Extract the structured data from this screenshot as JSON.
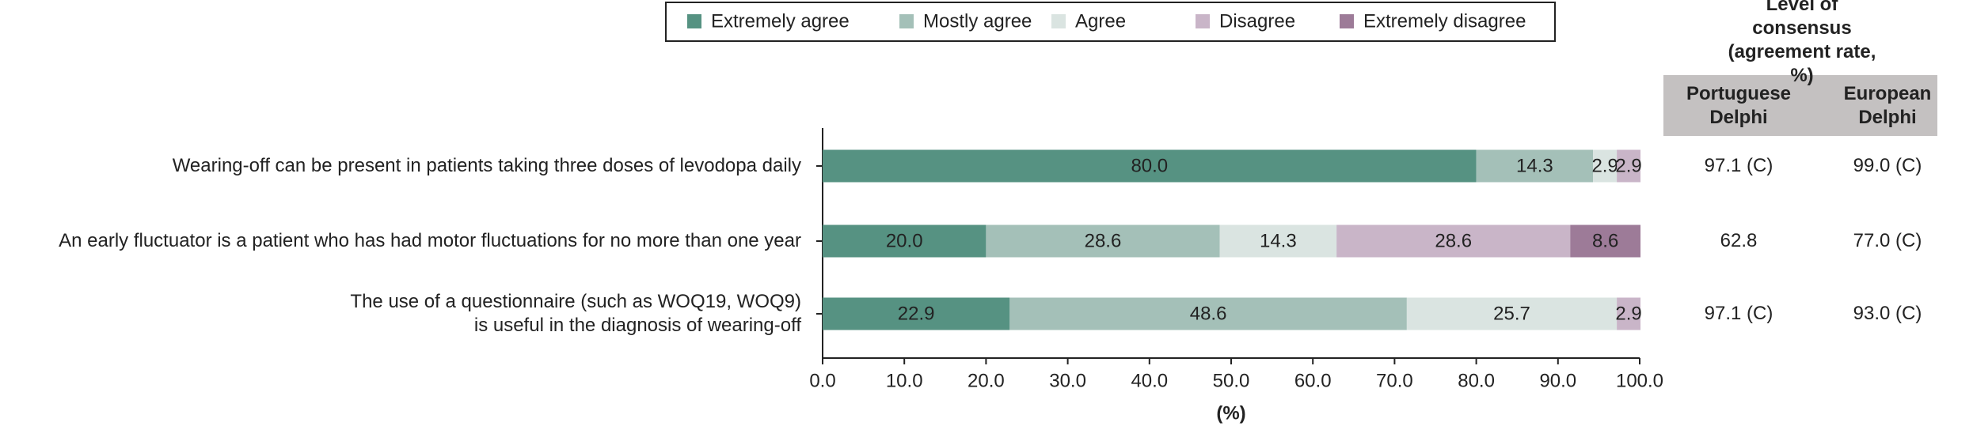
{
  "chart_data": {
    "type": "stacked-barh",
    "categories": [
      "Wearing-off can be present in patients taking three doses of levodopa daily",
      "An early fluctuator is a patient who has had motor fluctuations for no more than one year",
      "The use of a questionnaire (such as WOQ19, WOQ9)\nis useful in the diagnosis of wearing-off"
    ],
    "series": [
      {
        "name": "Extremely agree",
        "color": "#569282",
        "label_color": "#ffffff",
        "values": [
          80.0,
          20.0,
          22.9
        ],
        "value_labels": [
          "80.0",
          "20.0",
          "22.9"
        ]
      },
      {
        "name": "Mostly agree",
        "color": "#a4c0b8",
        "label_color": "#222222",
        "values": [
          14.3,
          28.6,
          48.6
        ],
        "value_labels": [
          "14.3",
          "28.6",
          "48.6"
        ]
      },
      {
        "name": "Agree",
        "color": "#dae4e1",
        "label_color": "#222222",
        "values": [
          2.9,
          14.3,
          25.7
        ],
        "value_labels": [
          "2.9",
          "14.3",
          "25.7"
        ]
      },
      {
        "name": "Disagree",
        "color": "#c9b5c8",
        "label_color": "#222222",
        "values": [
          2.9,
          28.6,
          2.9
        ],
        "value_labels": [
          "2.9",
          "28.6",
          "2.9"
        ]
      },
      {
        "name": "Extremely disagree",
        "color": "#9d7b98",
        "label_color": "#ffffff",
        "values": [
          0,
          8.6,
          0
        ],
        "value_labels": [
          null,
          "8.6",
          null
        ]
      }
    ],
    "xlim": [
      0,
      100
    ],
    "xticks": [
      {
        "value": 0,
        "label": "0.0"
      },
      {
        "value": 10,
        "label": "10.0"
      },
      {
        "value": 20,
        "label": "20.0"
      },
      {
        "value": 30,
        "label": "30.0"
      },
      {
        "value": 40,
        "label": "40.0"
      },
      {
        "value": 50,
        "label": "50.0"
      },
      {
        "value": 60,
        "label": "60.0"
      },
      {
        "value": 70,
        "label": "70.0"
      },
      {
        "value": 80,
        "label": "80.0"
      },
      {
        "value": 90,
        "label": "90.0"
      },
      {
        "value": 100,
        "label": "100.0"
      }
    ],
    "x_label": "(%)",
    "legend": "top"
  },
  "consensus_table": {
    "title": "Level of consensus\n(agreement rate, %)",
    "columns": [
      "Portuguese\nDelphi",
      "European\nDelphi"
    ],
    "rows": [
      [
        "97.1 (C)",
        "99.0 (C)"
      ],
      [
        "62.8",
        "77.0 (C)"
      ],
      [
        "97.1 (C)",
        "93.0 (C)"
      ]
    ]
  }
}
